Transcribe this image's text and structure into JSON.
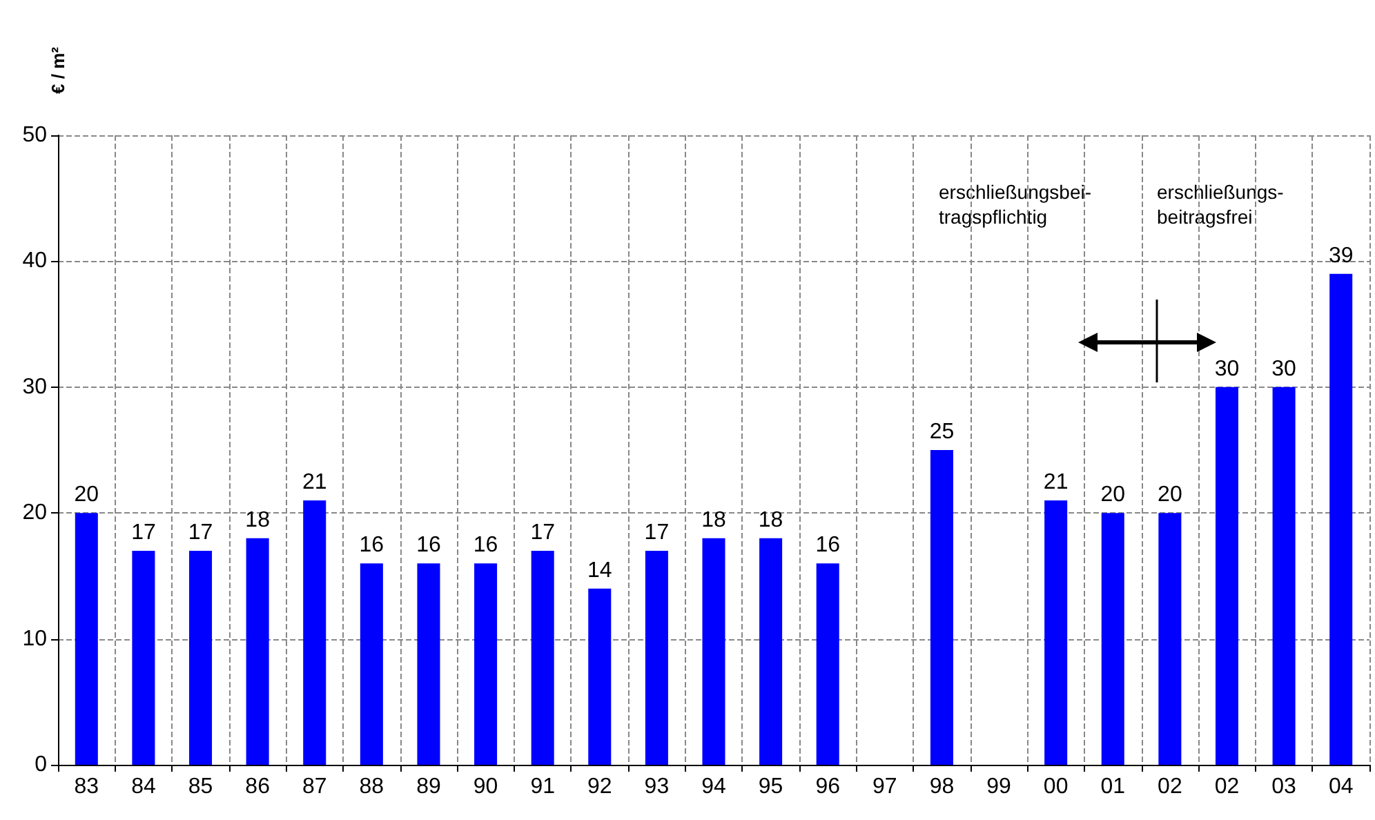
{
  "chart_data": {
    "type": "bar",
    "ylabel": "€ / m²",
    "categories": [
      "83",
      "84",
      "85",
      "86",
      "87",
      "88",
      "89",
      "90",
      "91",
      "92",
      "93",
      "94",
      "95",
      "96",
      "97",
      "98",
      "99",
      "00",
      "01",
      "02",
      "02",
      "03",
      "04"
    ],
    "values": [
      20,
      17,
      17,
      18,
      21,
      16,
      16,
      16,
      17,
      14,
      17,
      18,
      18,
      16,
      null,
      25,
      null,
      21,
      20,
      20,
      30,
      30,
      39
    ],
    "color": "#0000ff",
    "ylim": [
      0,
      50
    ],
    "yticks": [
      0,
      10,
      20,
      30,
      40,
      50
    ],
    "grid": true,
    "data_labels": true,
    "annotations": [
      "erschließungsbei-\ntragspflichtig",
      "erschließungs-\nbeitragsfrei"
    ]
  }
}
